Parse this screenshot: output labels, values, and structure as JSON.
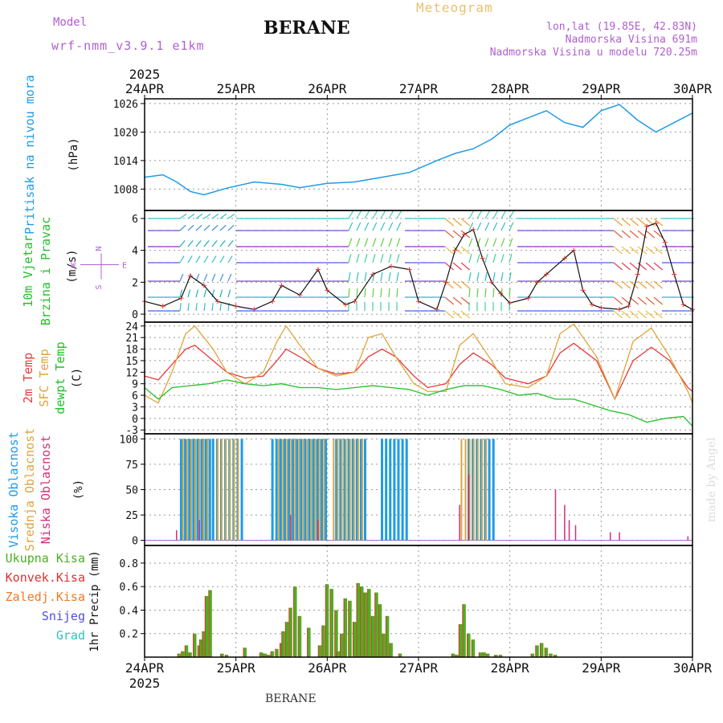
{
  "header": {
    "model_label": "Model",
    "model_name": "wrf-nmm_v3.9.1 e1km",
    "station_title": "BERANE",
    "meteogram_label": "Meteogram",
    "lonlat": "lon,lat (19.85E, 42.83N)",
    "altitude": "Nadmorska Visina 691m",
    "model_altitude": "Nadmorska Visina u modelu 720.25m",
    "credit": "made by Angel",
    "footer_station": "BERANE"
  },
  "colors": {
    "pressure": "#1e9be6",
    "temp2m": "#e83a3a",
    "sfc_temp": "#e0a43a",
    "dewpt": "#22c02a",
    "cloud_high": "#1e9be6",
    "cloud_mid": "#d9a640",
    "cloud_low": "#d0307a",
    "precip_total": "#4caf20",
    "precip_conv": "#e03030",
    "precip_frz": "#f07828",
    "precip_snow": "#5050e0",
    "precip_grad": "#30c0c0",
    "model_purple": "#b060d0"
  },
  "chart_data": [
    {
      "type": "line",
      "panel": "pressure",
      "ylabel": [
        "Pritisak na nivou mora",
        "(hPa)"
      ],
      "x_ticks_top": [
        "24APR",
        "25APR",
        "26APR",
        "27APR",
        "28APR",
        "29APR",
        "30APR"
      ],
      "x_year": "2025",
      "ylim": [
        1003.5,
        1027
      ],
      "yticks": [
        1008,
        1014,
        1020,
        1026
      ],
      "grid": true,
      "series": [
        {
          "x": [
            0,
            0.2,
            0.35,
            0.5,
            0.65,
            0.9,
            1.2,
            1.5,
            1.7,
            2,
            2.3,
            2.6,
            2.9,
            3.2,
            3.4,
            3.6,
            3.8,
            4,
            4.2,
            4.4,
            4.6,
            4.8,
            5,
            5.2,
            5.4,
            5.6,
            5.8,
            6
          ],
          "values": [
            1010.5,
            1011,
            1009.5,
            1007.5,
            1006.8,
            1008.2,
            1009.5,
            1009,
            1008.3,
            1009.2,
            1009.5,
            1010.5,
            1011.5,
            1014,
            1015.5,
            1016.5,
            1018.5,
            1021.5,
            1023,
            1024.5,
            1022,
            1021,
            1024.5,
            1025.8,
            1022.5,
            1020,
            1022,
            1024
          ]
        }
      ]
    },
    {
      "type": "line",
      "panel": "wind",
      "ylabel": [
        "10m Vjetar",
        "Brzina i Pravac",
        "(m/s)"
      ],
      "compass": [
        "N",
        "W",
        "E",
        "S"
      ],
      "ylim": [
        -0.5,
        6.5
      ],
      "yticks": [
        0,
        2,
        4,
        6
      ],
      "grid": true,
      "series": [
        {
          "name": "speed",
          "x": [
            0,
            0.2,
            0.4,
            0.5,
            0.65,
            0.8,
            1,
            1.2,
            1.4,
            1.5,
            1.7,
            1.9,
            2,
            2.2,
            2.3,
            2.5,
            2.7,
            2.9,
            3,
            3.2,
            3.3,
            3.4,
            3.5,
            3.6,
            3.7,
            3.8,
            3.9,
            4,
            4.2,
            4.3,
            4.4,
            4.6,
            4.7,
            4.8,
            4.9,
            5,
            5.2,
            5.3,
            5.4,
            5.5,
            5.6,
            5.7,
            5.8,
            5.9,
            6
          ],
          "values": [
            0.8,
            0.5,
            1,
            2.4,
            1.8,
            0.8,
            0.5,
            0.3,
            0.8,
            1.8,
            1.2,
            2.8,
            1.5,
            0.6,
            0.8,
            2.5,
            3,
            2.8,
            0.8,
            0.3,
            2,
            4,
            5,
            5.3,
            3.5,
            2,
            1.3,
            0.7,
            1,
            2,
            2.5,
            3.5,
            4,
            1.5,
            0.6,
            0.4,
            0.3,
            0.5,
            2.5,
            5.5,
            5.7,
            4.5,
            2.5,
            0.6,
            0.3
          ]
        }
      ]
    },
    {
      "type": "line",
      "panel": "temperature",
      "ylabel": [
        "2m Temp",
        "SFC Temp",
        "dewpt Temp",
        "(C)"
      ],
      "ylim": [
        -4,
        25
      ],
      "yticks": [
        -3,
        0,
        3,
        6,
        9,
        12,
        15,
        18,
        21,
        24
      ],
      "grid": true,
      "series": [
        {
          "name": "2m Temp",
          "x": [
            0,
            0.15,
            0.3,
            0.45,
            0.55,
            0.75,
            0.9,
            1.1,
            1.3,
            1.45,
            1.55,
            1.7,
            1.9,
            2.1,
            2.3,
            2.45,
            2.6,
            2.75,
            2.95,
            3.1,
            3.3,
            3.45,
            3.6,
            3.8,
            3.95,
            4.2,
            4.4,
            4.55,
            4.7,
            4.95,
            5.15,
            5.35,
            5.55,
            5.75,
            5.95,
            6
          ],
          "values": [
            11,
            10,
            14,
            18,
            19,
            15,
            12,
            10.5,
            11,
            15,
            18,
            16,
            13,
            11.5,
            12,
            16,
            18,
            16,
            11,
            8,
            9,
            14,
            17,
            14,
            10.5,
            9,
            11,
            17,
            19.5,
            15,
            5,
            15,
            18.5,
            15,
            8,
            7
          ]
        },
        {
          "name": "SFC Temp",
          "x": [
            0,
            0.15,
            0.3,
            0.45,
            0.55,
            0.75,
            0.9,
            1.1,
            1.3,
            1.45,
            1.55,
            1.7,
            1.9,
            2.1,
            2.3,
            2.45,
            2.6,
            2.75,
            2.95,
            3.1,
            3.3,
            3.45,
            3.6,
            3.8,
            3.95,
            4.2,
            4.4,
            4.55,
            4.7,
            4.95,
            5.15,
            5.35,
            5.55,
            5.75,
            5.95,
            6
          ],
          "values": [
            6,
            4,
            12,
            22,
            24,
            18,
            12,
            9,
            12,
            20,
            24,
            19,
            13,
            11,
            12,
            21,
            22,
            16,
            9,
            7,
            7,
            19,
            22,
            15,
            9,
            8,
            11,
            22,
            24.5,
            16,
            5,
            20,
            23.5,
            16,
            7,
            4
          ]
        },
        {
          "name": "dewpt Temp",
          "x": [
            0,
            0.15,
            0.3,
            0.5,
            0.7,
            0.9,
            1.1,
            1.3,
            1.5,
            1.7,
            1.9,
            2.1,
            2.3,
            2.5,
            2.7,
            2.9,
            3.1,
            3.3,
            3.5,
            3.7,
            3.9,
            4.1,
            4.3,
            4.5,
            4.7,
            4.9,
            5.1,
            5.3,
            5.5,
            5.7,
            5.9,
            6
          ],
          "values": [
            8,
            5,
            8,
            8.5,
            9,
            10,
            9,
            8.5,
            9,
            8,
            8,
            7.5,
            8,
            8.5,
            8,
            7.5,
            6,
            7.5,
            8.5,
            8.5,
            7.5,
            6,
            6.5,
            5,
            5,
            3.5,
            2,
            1,
            -1,
            0,
            0.5,
            -2
          ]
        }
      ]
    },
    {
      "type": "bar",
      "panel": "cloud",
      "ylabel": [
        "Visoka Oblacnost",
        "Srednja Oblacnost",
        "Niska Oblacnost",
        "(%)"
      ],
      "ylim": [
        -5,
        105
      ],
      "yticks": [
        0,
        25,
        50,
        75,
        100
      ],
      "grid": true,
      "series": [
        {
          "name": "Visoka Oblacnost",
          "ranges": [
            [
              0.4,
              0.72
            ],
            [
              0.75,
              1.08
            ],
            [
              1.4,
              2.0
            ],
            [
              2.1,
              2.45
            ],
            [
              2.6,
              2.9
            ],
            [
              3.55,
              3.85
            ]
          ],
          "level": 100
        },
        {
          "name": "Srednja Oblacnost",
          "ranges": [
            [
              0.4,
              0.72
            ],
            [
              0.78,
              1.05
            ],
            [
              1.45,
              2.0
            ],
            [
              2.05,
              2.4
            ],
            [
              3.45,
              3.75
            ]
          ],
          "level": 100
        },
        {
          "name": "Niska Oblacnost",
          "x": [
            0.35,
            0.6,
            1.6,
            1.9,
            3.45,
            3.55,
            4.5,
            4.6,
            4.65,
            4.72,
            5.1,
            5.2,
            5.95
          ],
          "values": [
            10,
            20,
            25,
            20,
            35,
            65,
            50,
            35,
            20,
            15,
            8,
            8,
            4
          ]
        }
      ]
    },
    {
      "type": "bar",
      "panel": "precip",
      "ylabel": [
        "1hr Precip (mm)"
      ],
      "legend": [
        "Ukupna Kisa",
        "Konvek.Kisa",
        "Zaledj.Kisa",
        "Snijeg",
        "Grad"
      ],
      "x_ticks_bottom": [
        "24APR",
        "25APR",
        "26APR",
        "27APR",
        "28APR",
        "29APR",
        "30APR"
      ],
      "x_year": "2025",
      "ylim": [
        0,
        0.95
      ],
      "yticks": [
        0.2,
        0.4,
        0.6,
        0.8
      ],
      "grid": true,
      "series": [
        {
          "name": "Ukupna Kisa",
          "x": [
            0.38,
            0.42,
            0.46,
            0.5,
            0.55,
            0.6,
            0.62,
            0.65,
            0.68,
            0.72,
            0.85,
            0.9,
            1.1,
            1.28,
            1.32,
            1.36,
            1.4,
            1.45,
            1.5,
            1.52,
            1.56,
            1.6,
            1.65,
            1.7,
            1.8,
            1.92,
            1.96,
            2.0,
            2.05,
            2.1,
            2.12,
            2.16,
            2.2,
            2.25,
            2.3,
            2.34,
            2.38,
            2.42,
            2.46,
            2.5,
            2.54,
            2.58,
            2.62,
            2.66,
            2.7,
            2.8,
            3.38,
            3.42,
            3.46,
            3.5,
            3.55,
            3.6,
            3.68,
            3.72,
            3.76,
            3.85,
            3.9,
            4.25,
            4.3,
            4.35,
            4.4,
            4.45,
            4.5
          ],
          "values": [
            0.03,
            0.05,
            0.1,
            0.04,
            0.2,
            0.1,
            0.15,
            0.22,
            0.52,
            0.57,
            0.03,
            0.02,
            0.08,
            0.04,
            0.03,
            0.02,
            0.05,
            0.07,
            0.12,
            0.22,
            0.3,
            0.42,
            0.6,
            0.35,
            0.25,
            0.1,
            0.27,
            0.62,
            0.58,
            0.4,
            0.05,
            0.2,
            0.5,
            0.48,
            0.3,
            0.63,
            0.6,
            0.55,
            0.58,
            0.35,
            0.55,
            0.45,
            0.2,
            0.35,
            0.12,
            0.03,
            0.03,
            0.02,
            0.28,
            0.45,
            0.2,
            0.15,
            0.04,
            0.04,
            0.03,
            0.02,
            0.02,
            0.03,
            0.1,
            0.12,
            0.08,
            0.03,
            0.02
          ]
        }
      ]
    }
  ]
}
